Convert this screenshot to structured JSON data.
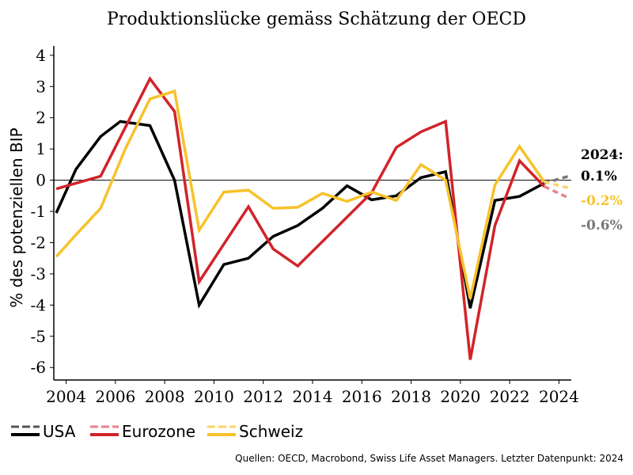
{
  "chart_data": {
    "type": "line",
    "title": "Produktionslücke gemäss Schätzung der OECD",
    "ylabel": "% des potenziellen BIP",
    "xlabel": "",
    "xlim": [
      2003.5,
      2024.5
    ],
    "ylim": [
      -6.4,
      4.3
    ],
    "yticks": [
      4,
      3,
      2,
      1,
      0,
      -1,
      -2,
      -3,
      -4,
      -5,
      -6
    ],
    "xticks": [
      2004,
      2006,
      2008,
      2010,
      2012,
      2014,
      2016,
      2018,
      2020,
      2022,
      2024
    ],
    "grid": false,
    "legend_position": "bottom-left",
    "series": [
      {
        "name": "USA",
        "color": "#000000",
        "forecast_color": "#777777",
        "x": [
          2003.6,
          2004.4,
          2005.4,
          2006.2,
          2007.4,
          2008.4,
          2009.4,
          2010.4,
          2011.4,
          2012.4,
          2013.4,
          2014.4,
          2015.4,
          2016.4,
          2017.4,
          2018.4,
          2019.4,
          2020.4,
          2021.4,
          2022.4,
          2023.4
        ],
        "values": [
          -1.05,
          0.35,
          1.4,
          1.88,
          1.75,
          0.0,
          -4.0,
          -2.7,
          -2.5,
          -1.8,
          -1.45,
          -0.9,
          -0.18,
          -0.63,
          -0.5,
          0.08,
          0.27,
          -4.1,
          -0.65,
          -0.52,
          -0.1
        ],
        "forecast_x": [
          2023.4,
          2024.4
        ],
        "forecast_values": [
          -0.1,
          0.13
        ]
      },
      {
        "name": "Eurozone",
        "color": "#d2232a",
        "forecast_color": "#e8828a",
        "x": [
          2003.6,
          2005.4,
          2007.4,
          2008.4,
          2009.4,
          2011.4,
          2012.4,
          2013.4,
          2016.4,
          2017.4,
          2018.4,
          2019.4,
          2020.4,
          2021.4,
          2022.4,
          2023.4
        ],
        "values": [
          -0.28,
          0.13,
          3.25,
          2.2,
          -3.25,
          -0.85,
          -2.2,
          -2.75,
          -0.4,
          1.05,
          1.55,
          1.88,
          -5.75,
          -1.45,
          0.62,
          -0.2
        ],
        "forecast_x": [
          2023.4,
          2024.4
        ],
        "forecast_values": [
          -0.2,
          -0.57
        ]
      },
      {
        "name": "Schweiz",
        "color": "#f7c22b",
        "forecast_color": "#f9d56a",
        "x": [
          2003.6,
          2004.4,
          2005.4,
          2006.4,
          2007.4,
          2008.4,
          2009.4,
          2010.4,
          2011.4,
          2012.4,
          2013.4,
          2014.4,
          2015.4,
          2016.4,
          2017.4,
          2018.4,
          2019.4,
          2020.4,
          2021.4,
          2022.4,
          2023.4
        ],
        "values": [
          -2.45,
          -1.75,
          -0.9,
          1.0,
          2.6,
          2.85,
          -1.6,
          -0.38,
          -0.32,
          -0.9,
          -0.87,
          -0.42,
          -0.68,
          -0.38,
          -0.65,
          0.5,
          0.0,
          -3.8,
          -0.15,
          1.08,
          -0.05
        ],
        "forecast_x": [
          2023.4,
          2024.4
        ],
        "forecast_values": [
          -0.05,
          -0.25
        ]
      }
    ],
    "annotation": {
      "header": "2024:",
      "values": [
        {
          "text": "0.1%",
          "color": "#000000"
        },
        {
          "text": "-0.2%",
          "color": "#f7c22b"
        },
        {
          "text": "-0.6%",
          "color": "#777777"
        }
      ]
    }
  },
  "legend": [
    {
      "label": "USA",
      "color": "#000000",
      "dash_color": "#555555"
    },
    {
      "label": "Eurozone",
      "color": "#d2232a",
      "dash_color": "#e8828a"
    },
    {
      "label": "Schweiz",
      "color": "#f7c22b",
      "dash_color": "#f9d56a"
    }
  ],
  "source": "Quellen: OECD, Macrobond, Swiss Life Asset Managers. Letzter Datenpunkt: 2024"
}
